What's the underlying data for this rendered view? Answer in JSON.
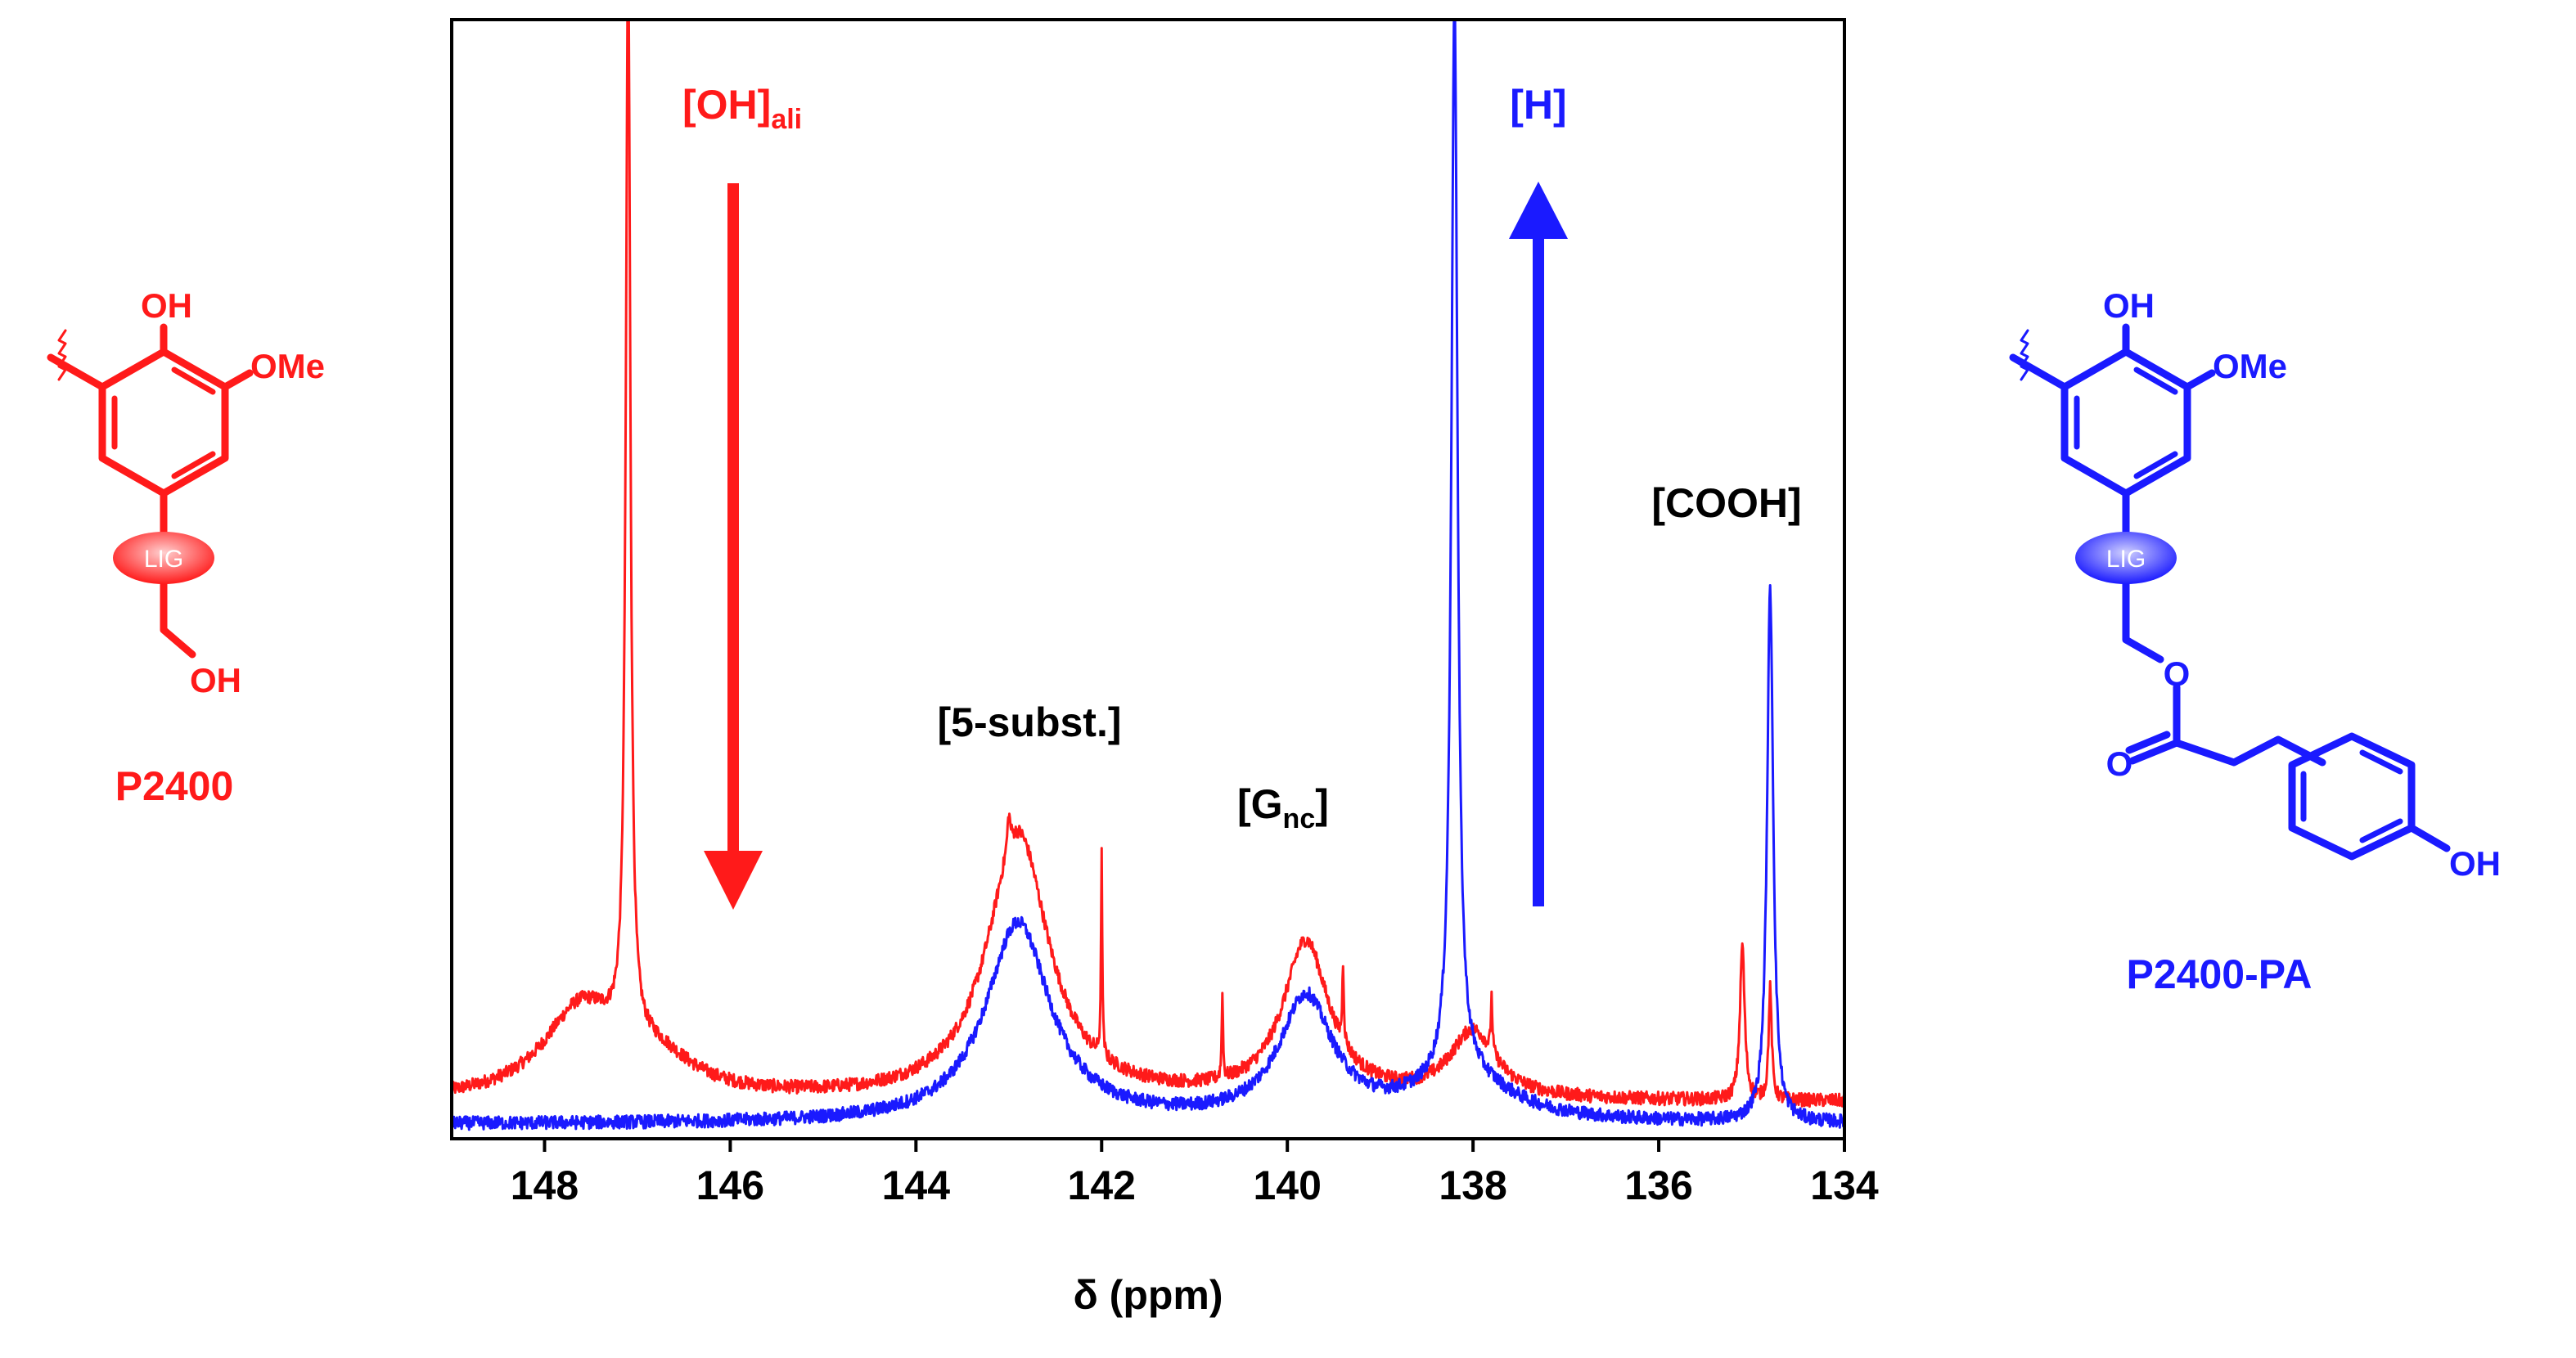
{
  "chart_data": {
    "type": "line",
    "xlabel": "δ (ppm)",
    "ylabel": "",
    "xlim": [
      149,
      134
    ],
    "x_reversed": true,
    "ylim": [
      0,
      100
    ],
    "ticks": [
      "148",
      "146",
      "144",
      "142",
      "140",
      "138",
      "136",
      "134"
    ],
    "tick_values": [
      148,
      146,
      144,
      142,
      140,
      138,
      136,
      134
    ],
    "series": [
      {
        "name": "P2400",
        "color": "#ff1a1a",
        "baseline": 3,
        "broad": [
          {
            "c": 147.6,
            "h": 8,
            "w": 0.5
          },
          {
            "c": 146.8,
            "h": 3,
            "w": 0.5
          },
          {
            "c": 142.9,
            "h": 24,
            "w": 0.4
          },
          {
            "c": 139.8,
            "h": 14,
            "w": 0.3
          },
          {
            "c": 138.0,
            "h": 6,
            "w": 0.3
          }
        ],
        "sharp": [
          {
            "c": 147.1,
            "h": 97,
            "w": 0.03
          },
          {
            "c": 143.0,
            "h": 3,
            "w": 0.02
          },
          {
            "c": 142.0,
            "h": 18,
            "w": 0.008
          },
          {
            "c": 140.7,
            "h": 8,
            "w": 0.008
          },
          {
            "c": 139.4,
            "h": 7,
            "w": 0.01
          },
          {
            "c": 137.8,
            "h": 5,
            "w": 0.01
          },
          {
            "c": 135.1,
            "h": 14,
            "w": 0.03
          },
          {
            "c": 134.8,
            "h": 10,
            "w": 0.02
          }
        ]
      },
      {
        "name": "P2400-PA",
        "color": "#1a1aff",
        "baseline": 1,
        "broad": [
          {
            "c": 142.9,
            "h": 18,
            "w": 0.42
          },
          {
            "c": 139.8,
            "h": 11,
            "w": 0.35
          },
          {
            "c": 138.1,
            "h": 4,
            "w": 0.6
          }
        ],
        "sharp": [
          {
            "c": 138.2,
            "h": 97,
            "w": 0.04
          },
          {
            "c": 134.8,
            "h": 48,
            "w": 0.04
          }
        ]
      }
    ],
    "annotations": {
      "oh_ali_main": "[OH]",
      "oh_ali_sub": "ali",
      "h": "[H]",
      "cooh": "[COOH]",
      "subst5": "[5-subst.]",
      "gnc_open": "[G",
      "gnc_sub": "nc",
      "gnc_close": "]"
    },
    "arrows": [
      {
        "name": "down-arrow",
        "direction": "down",
        "color": "#ff1a1a"
      },
      {
        "name": "up-arrow",
        "direction": "up",
        "color": "#1a1aff"
      }
    ]
  },
  "structures": {
    "left": {
      "name": "P2400",
      "color": "#ff1a1a",
      "oh_top": "OH",
      "ome": "OMe",
      "lig": "LIG",
      "oh_bottom": "OH"
    },
    "right": {
      "name": "P2400-PA",
      "color": "#1a1aff",
      "oh_top": "OH",
      "ome": "OMe",
      "lig": "LIG",
      "ester_o": "O",
      "carbonyl_o": "O",
      "oh_phenol": "OH"
    }
  }
}
